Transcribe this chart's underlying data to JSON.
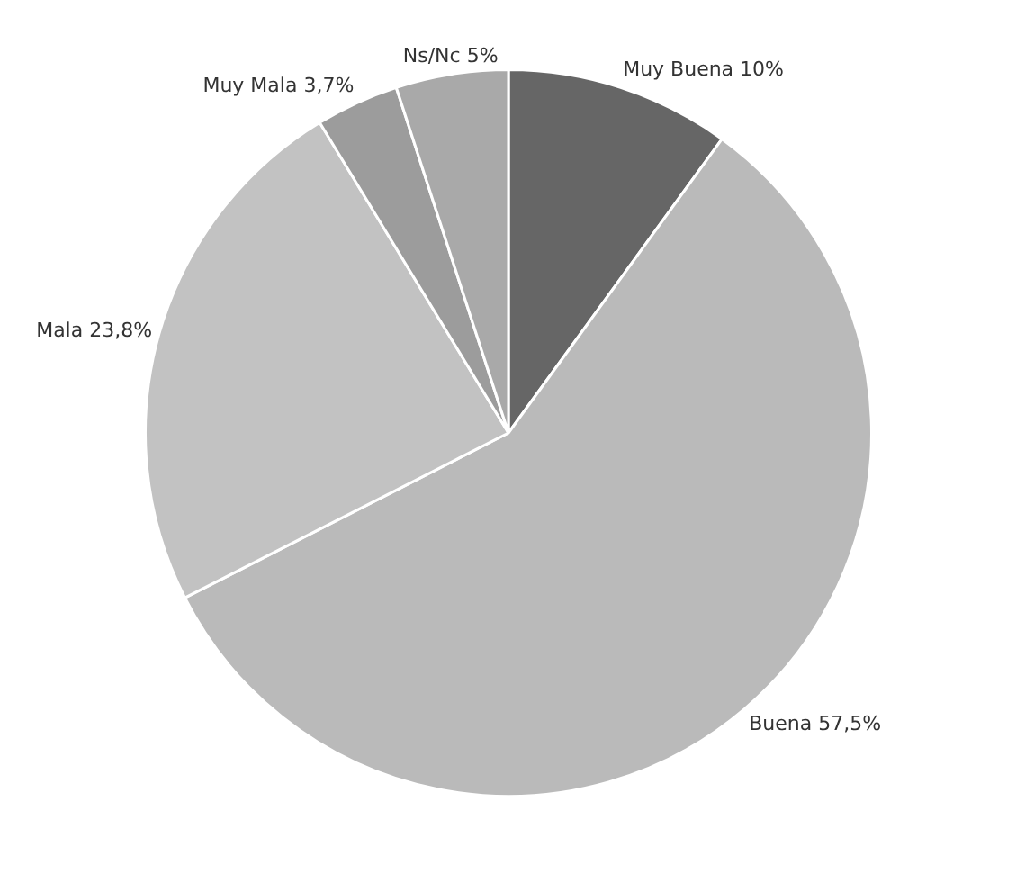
{
  "chart_data": {
    "type": "pie",
    "categories": [
      "Muy Buena",
      "Buena",
      "Mala",
      "Muy Mala",
      "Ns/Nc"
    ],
    "values": [
      10,
      57.5,
      23.8,
      3.7,
      5
    ],
    "value_labels": [
      "10%",
      "57,5%",
      "23,8%",
      "3,7%",
      "5%"
    ],
    "colors": [
      "#666666",
      "#bababa",
      "#c2c2c2",
      "#9c9c9c",
      "#a9a9a9"
    ],
    "legend": false
  }
}
